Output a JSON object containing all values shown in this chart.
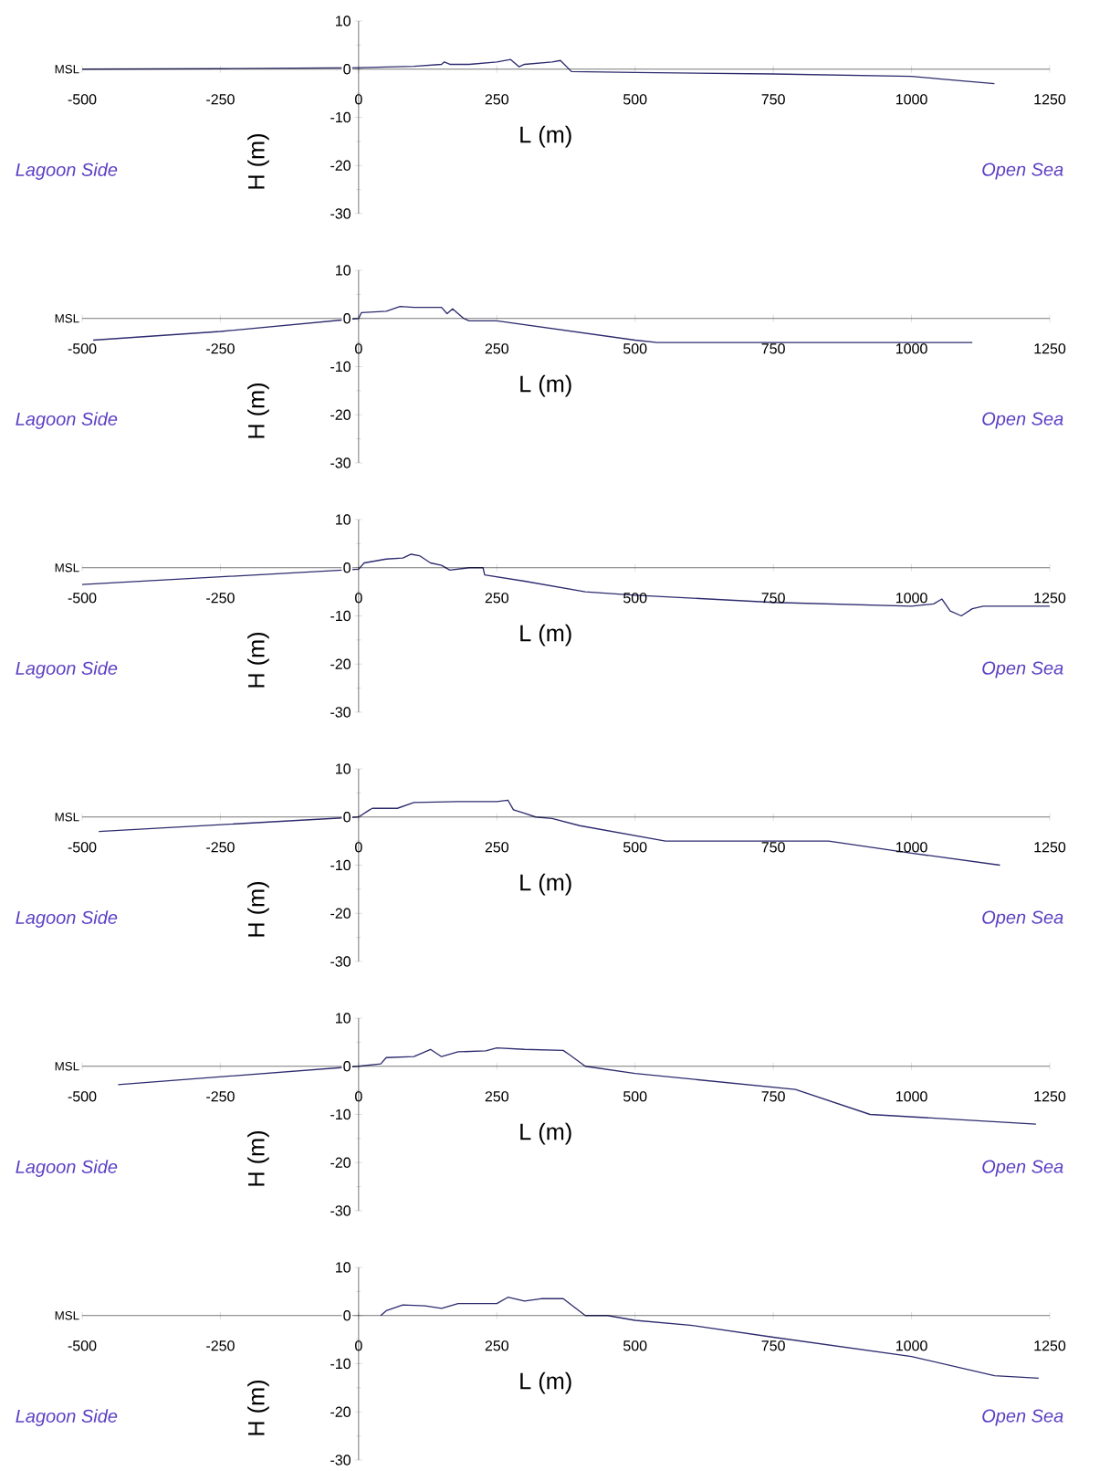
{
  "chart_data": [
    {
      "type": "line",
      "xlabel": "L (m)",
      "ylabel": "H (m)",
      "color": "#2d2b6e",
      "xlim": [
        -500,
        1250
      ],
      "ylim": [
        -30,
        10
      ],
      "xticks": [
        -500,
        -250,
        0,
        250,
        500,
        750,
        1000,
        1250
      ],
      "yticks": [
        -30,
        -20,
        -10,
        0,
        10
      ],
      "annotations": [
        "MSL",
        "Lagoon Side",
        "Open Sea"
      ],
      "x": [
        -500,
        -250,
        0,
        100,
        150,
        155,
        165,
        200,
        250,
        275,
        290,
        300,
        350,
        365,
        385,
        500,
        750,
        1000,
        1050,
        1150
      ],
      "values": [
        0,
        0.1,
        0.3,
        0.6,
        1,
        1.5,
        1,
        1,
        1.5,
        2,
        0.5,
        1,
        1.5,
        1.8,
        -0.5,
        -0.7,
        -1,
        -1.5,
        -2,
        -3
      ]
    },
    {
      "type": "line",
      "xlabel": "L (m)",
      "ylabel": "H (m)",
      "color": "#2d2b6e",
      "xlim": [
        -500,
        1250
      ],
      "ylim": [
        -30,
        10
      ],
      "xticks": [
        -500,
        -250,
        0,
        250,
        500,
        750,
        1000,
        1250
      ],
      "yticks": [
        -30,
        -20,
        -10,
        0,
        10
      ],
      "annotations": [
        "MSL",
        "Lagoon Side",
        "Open Sea"
      ],
      "x": [
        -480,
        -250,
        0,
        5,
        50,
        75,
        100,
        150,
        160,
        170,
        190,
        200,
        250,
        500,
        540,
        1110
      ],
      "values": [
        -4.5,
        -2.7,
        0,
        1.2,
        1.5,
        2.5,
        2.3,
        2.3,
        1,
        2,
        0,
        -0.5,
        -0.5,
        -4.5,
        -5,
        -5
      ]
    },
    {
      "type": "line",
      "xlabel": "L (m)",
      "ylabel": "H (m)",
      "color": "#2d2b6e",
      "xlim": [
        -500,
        1250
      ],
      "ylim": [
        -30,
        10
      ],
      "xticks": [
        -500,
        -250,
        0,
        250,
        500,
        750,
        1000,
        1250
      ],
      "yticks": [
        -30,
        -20,
        -10,
        0,
        10
      ],
      "annotations": [
        "MSL",
        "Lagoon Side",
        "Open Sea"
      ],
      "x": [
        -500,
        0,
        10,
        50,
        80,
        95,
        110,
        130,
        150,
        165,
        200,
        225,
        228,
        300,
        410,
        500,
        750,
        1000,
        1040,
        1055,
        1070,
        1090,
        1110,
        1130,
        1250
      ],
      "values": [
        -3.5,
        -0.3,
        1,
        1.8,
        2,
        2.8,
        2.5,
        1,
        0.5,
        -0.5,
        0,
        0,
        -1.5,
        -2.8,
        -5,
        -5.7,
        -7.2,
        -8,
        -7.5,
        -6.5,
        -9,
        -10,
        -8.5,
        -8,
        -8
      ]
    },
    {
      "type": "line",
      "xlabel": "L (m)",
      "ylabel": "H (m)",
      "color": "#2d2b6e",
      "xlim": [
        -500,
        1250
      ],
      "ylim": [
        -30,
        10
      ],
      "xticks": [
        -500,
        -250,
        0,
        250,
        500,
        750,
        1000,
        1250
      ],
      "yticks": [
        -30,
        -20,
        -10,
        0,
        10
      ],
      "annotations": [
        "MSL",
        "Lagoon Side",
        "Open Sea"
      ],
      "x": [
        -470,
        0,
        20,
        25,
        70,
        100,
        180,
        250,
        270,
        280,
        300,
        320,
        350,
        400,
        555,
        850,
        1000,
        1160
      ],
      "values": [
        -3,
        0,
        1.5,
        1.8,
        1.8,
        3,
        3.2,
        3.2,
        3.5,
        1.5,
        0.8,
        0,
        -0.3,
        -1.8,
        -5,
        -5,
        -7.5,
        -10
      ]
    },
    {
      "type": "line",
      "xlabel": "L (m)",
      "ylabel": "H (m)",
      "color": "#2d2b6e",
      "xlim": [
        -500,
        1250
      ],
      "ylim": [
        -30,
        10
      ],
      "xticks": [
        -500,
        -250,
        0,
        250,
        500,
        750,
        1000,
        1250
      ],
      "yticks": [
        -30,
        -20,
        -10,
        0,
        10
      ],
      "annotations": [
        "MSL",
        "Lagoon Side",
        "Open Sea"
      ],
      "x": [
        -435,
        0,
        40,
        50,
        100,
        130,
        150,
        180,
        230,
        250,
        300,
        370,
        380,
        410,
        500,
        790,
        925,
        1225
      ],
      "values": [
        -3.8,
        0,
        0.5,
        1.8,
        2,
        3.5,
        2,
        3,
        3.2,
        3.8,
        3.5,
        3.3,
        2.5,
        0,
        -1.5,
        -4.8,
        -10,
        -12
      ]
    },
    {
      "type": "line",
      "xlabel": "L (m)",
      "ylabel": "H (m)",
      "color": "#2d2b6e",
      "xlim": [
        -500,
        1250
      ],
      "ylim": [
        -30,
        10
      ],
      "xticks": [
        -500,
        -250,
        0,
        250,
        500,
        750,
        1000,
        1250
      ],
      "yticks": [
        -30,
        -20,
        -10,
        0,
        10
      ],
      "annotations": [
        "MSL",
        "Lagoon Side",
        "Open Sea"
      ],
      "x": [
        40,
        50,
        80,
        120,
        150,
        180,
        250,
        270,
        300,
        330,
        370,
        410,
        450,
        500,
        600,
        750,
        1000,
        1150,
        1230
      ],
      "values": [
        0,
        1,
        2.2,
        2,
        1.5,
        2.5,
        2.5,
        3.8,
        3,
        3.5,
        3.5,
        0,
        0,
        -1,
        -2,
        -4.5,
        -8.5,
        -12.5,
        -13
      ]
    }
  ]
}
